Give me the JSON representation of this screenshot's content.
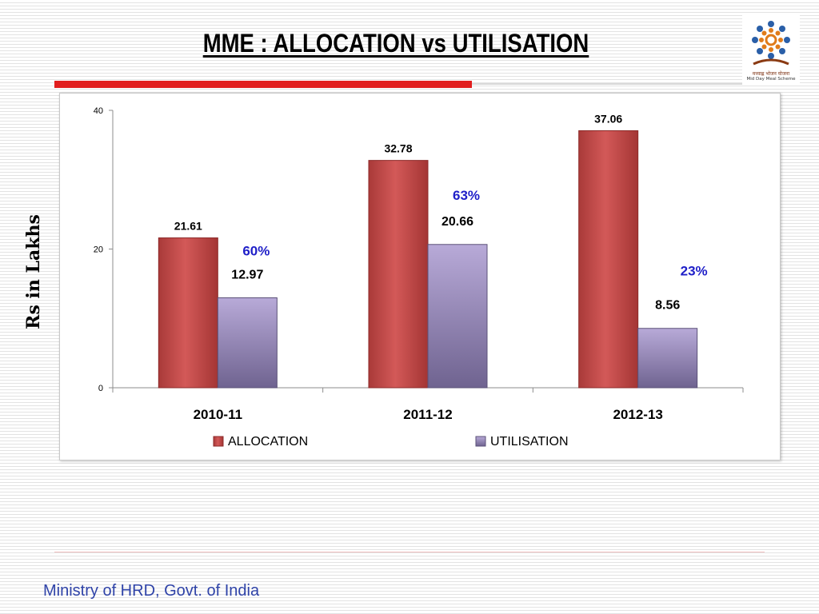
{
  "slide": {
    "title": "MME : ALLOCATION vs UTILISATION",
    "footer": "Ministry of HRD, Govt. of India",
    "logo_text_line1": "मध्याह्न भोजन योजना",
    "logo_text_line2": "Mid Day Meal Scheme"
  },
  "colors": {
    "accent_red": "#e11d1d",
    "allocation_bar": "#c9504f",
    "utilisation_bar": "#9b8bbf",
    "percent_label": "#1f1fc8",
    "footer_text": "#2f43a8"
  },
  "chart_data": {
    "type": "bar",
    "title": "",
    "xlabel": "",
    "ylabel": "Rs in Lakhs",
    "ylim": [
      0,
      40
    ],
    "yticks": [
      0,
      20,
      40
    ],
    "grid": false,
    "legend_placement": "bottom",
    "categories": [
      "2010-11",
      "2011-12",
      "2012-13"
    ],
    "series": [
      {
        "name": "ALLOCATION",
        "values": [
          21.61,
          32.78,
          37.06
        ],
        "labels": [
          "21.61",
          "32.78",
          "37.06"
        ]
      },
      {
        "name": "UTILISATION",
        "values": [
          12.97,
          20.66,
          8.56
        ],
        "labels": [
          "12.97",
          "20.66",
          "8.56"
        ]
      }
    ],
    "annotations": [
      "60%",
      "63%",
      "23%"
    ]
  }
}
